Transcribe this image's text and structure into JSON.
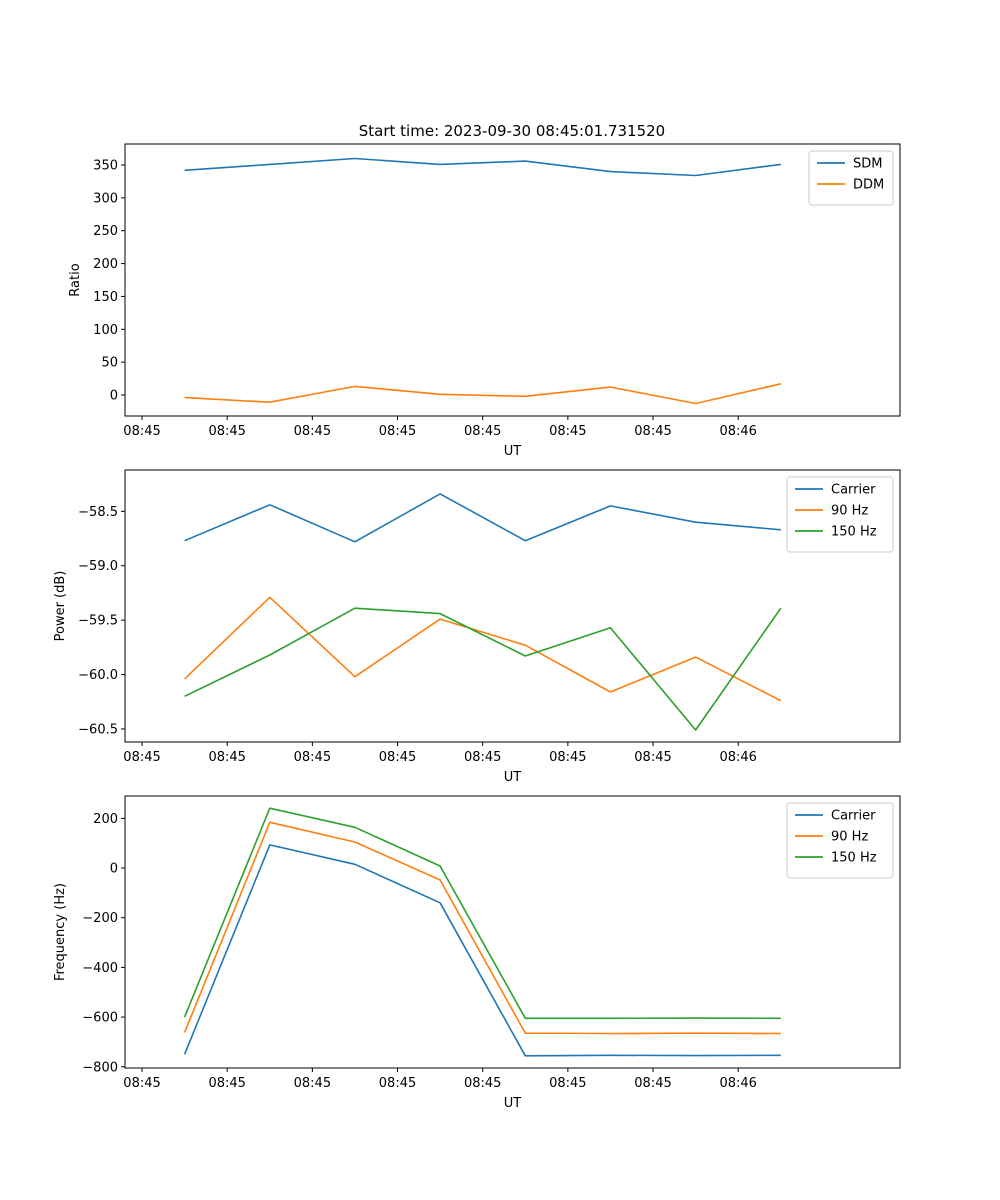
{
  "figure_title": "Start time: 2023-09-30 08:45:01.731520",
  "colors": {
    "blue": "#1f77b4",
    "orange": "#ff7f0e",
    "green": "#2ca02c",
    "axis": "#000000",
    "legend_border": "#cccccc"
  },
  "chart_data": [
    {
      "type": "line",
      "title": "Start time: 2023-09-30 08:45:01.731520",
      "xlabel": "UT",
      "ylabel": "Ratio",
      "x_tick_labels": [
        "08:45",
        "08:45",
        "08:45",
        "08:45",
        "08:45",
        "08:45",
        "08:45",
        "08:46"
      ],
      "xlim": [
        -0.2,
        8.9
      ],
      "ylim": [
        -32,
        382
      ],
      "yticks": [
        0,
        50,
        100,
        150,
        200,
        250,
        300,
        350
      ],
      "ytick_labels": [
        "0",
        "50",
        "100",
        "150",
        "200",
        "250",
        "300",
        "350"
      ],
      "x": [
        0.5,
        1.5,
        2.5,
        3.5,
        4.5,
        5.5,
        6.5,
        7.5
      ],
      "legend_position": "upper right",
      "series": [
        {
          "name": "SDM",
          "color": "#1f77b4",
          "values": [
            342,
            351,
            360,
            351,
            356,
            340,
            334,
            351
          ]
        },
        {
          "name": "DDM",
          "color": "#ff7f0e",
          "values": [
            -4,
            -11,
            13,
            1,
            -2,
            12,
            -13,
            17
          ]
        }
      ]
    },
    {
      "type": "line",
      "title": "",
      "xlabel": "UT",
      "ylabel": "Power (dB)",
      "x_tick_labels": [
        "08:45",
        "08:45",
        "08:45",
        "08:45",
        "08:45",
        "08:45",
        "08:45",
        "08:46"
      ],
      "xlim": [
        -0.2,
        8.9
      ],
      "ylim": [
        -60.62,
        -58.12
      ],
      "yticks": [
        -60.5,
        -60.0,
        -59.5,
        -59.0,
        -58.5
      ],
      "ytick_labels": [
        "−60.5",
        "−60.0",
        "−59.5",
        "−59.0",
        "−58.5"
      ],
      "x": [
        0.5,
        1.5,
        2.5,
        3.5,
        4.5,
        5.5,
        6.5,
        7.5
      ],
      "legend_position": "upper right",
      "series": [
        {
          "name": "Carrier",
          "color": "#1f77b4",
          "values": [
            -58.77,
            -58.44,
            -58.78,
            -58.34,
            -58.77,
            -58.45,
            -58.6,
            -58.67
          ]
        },
        {
          "name": "90 Hz",
          "color": "#ff7f0e",
          "values": [
            -60.04,
            -59.29,
            -60.02,
            -59.49,
            -59.73,
            -60.16,
            -59.84,
            -60.24
          ]
        },
        {
          "name": "150 Hz",
          "color": "#2ca02c",
          "values": [
            -60.2,
            -59.82,
            -59.39,
            -59.44,
            -59.83,
            -59.57,
            -60.51,
            -59.39
          ]
        }
      ]
    },
    {
      "type": "line",
      "title": "",
      "xlabel": "UT",
      "ylabel": "Frequency (Hz)",
      "x_tick_labels": [
        "08:45",
        "08:45",
        "08:45",
        "08:45",
        "08:45",
        "08:45",
        "08:45",
        "08:46"
      ],
      "xlim": [
        -0.2,
        8.9
      ],
      "ylim": [
        -805,
        290
      ],
      "yticks": [
        -800,
        -600,
        -400,
        -200,
        0,
        200
      ],
      "ytick_labels": [
        "−800",
        "−600",
        "−400",
        "−200",
        "0",
        "200"
      ],
      "x": [
        0.5,
        1.5,
        2.5,
        3.5,
        4.5,
        5.5,
        6.5,
        7.5
      ],
      "legend_position": "upper right",
      "series": [
        {
          "name": "Carrier",
          "color": "#1f77b4",
          "values": [
            -750,
            93,
            15,
            -140,
            -756,
            -754,
            -755,
            -754
          ]
        },
        {
          "name": "90 Hz",
          "color": "#ff7f0e",
          "values": [
            -662,
            184,
            105,
            -48,
            -665,
            -666,
            -665,
            -666
          ]
        },
        {
          "name": "150 Hz",
          "color": "#2ca02c",
          "values": [
            -600,
            241,
            164,
            8,
            -605,
            -605,
            -604,
            -605
          ]
        }
      ]
    }
  ]
}
